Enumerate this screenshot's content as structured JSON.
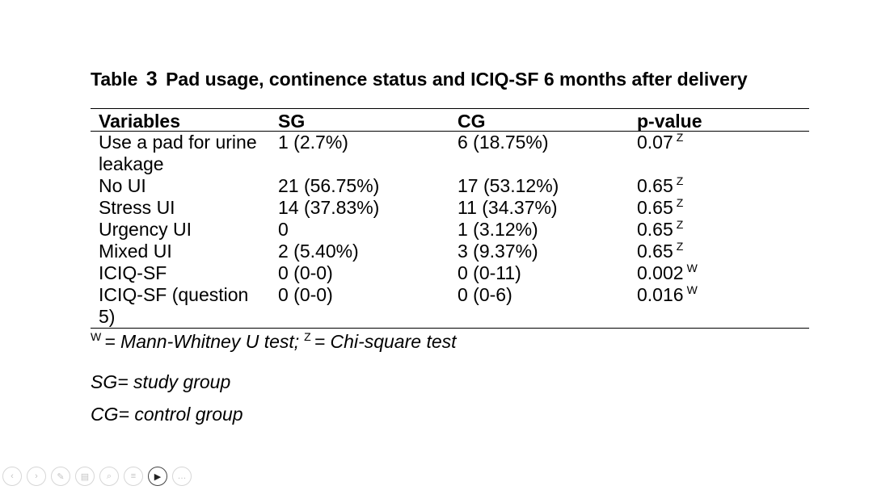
{
  "title": {
    "prefix": "Table",
    "number": "3",
    "text": "Pad usage, continence status and ICIQ-SF 6 months after delivery"
  },
  "table": {
    "headers": [
      "Variables",
      "SG",
      "CG",
      "p-value"
    ],
    "rows": [
      {
        "variable": "Use a pad for urine leakage",
        "sg": "1 (2.7%)",
        "cg": "6 (18.75%)",
        "p": "0.07",
        "test": "Z"
      },
      {
        "variable": "No UI",
        "sg": "21 (56.75%)",
        "cg": "17 (53.12%)",
        "p": "0.65",
        "test": "Z"
      },
      {
        "variable": "Stress UI",
        "sg": "14 (37.83%)",
        "cg": "11 (34.37%)",
        "p": "0.65",
        "test": "Z"
      },
      {
        "variable": "Urgency UI",
        "sg": "0",
        "cg": "1 (3.12%)",
        "p": "0.65",
        "test": "Z"
      },
      {
        "variable": "Mixed UI",
        "sg": "2 (5.40%)",
        "cg": "3 (9.37%)",
        "p": "0.65",
        "test": "Z"
      },
      {
        "variable": "ICIQ-SF",
        "sg": "0 (0-0)",
        "cg": "0 (0-11)",
        "p": "0.002",
        "test": "W"
      },
      {
        "variable": "ICIQ-SF (question 5)",
        "sg": "0 (0-0)",
        "cg": "0 (0-6)",
        "p": "0.016",
        "test": "W"
      }
    ]
  },
  "footnote": {
    "w_mark": "W",
    "w_text": "= Mann-Whitney U test;",
    "z_mark": "Z",
    "z_text": "= Chi-square test"
  },
  "notes": [
    "SG= study group",
    "CG= control group"
  ],
  "controls": [
    {
      "name": "previous-slide-button",
      "glyph": "‹"
    },
    {
      "name": "next-slide-button",
      "glyph": "›"
    },
    {
      "name": "pen-tool-button",
      "glyph": "✎"
    },
    {
      "name": "slides-view-button",
      "glyph": "▤"
    },
    {
      "name": "zoom-button",
      "glyph": "⌕"
    },
    {
      "name": "subtitles-button",
      "glyph": "≡"
    },
    {
      "name": "camera-button",
      "glyph": "▶"
    },
    {
      "name": "more-options-button",
      "glyph": "…"
    }
  ]
}
